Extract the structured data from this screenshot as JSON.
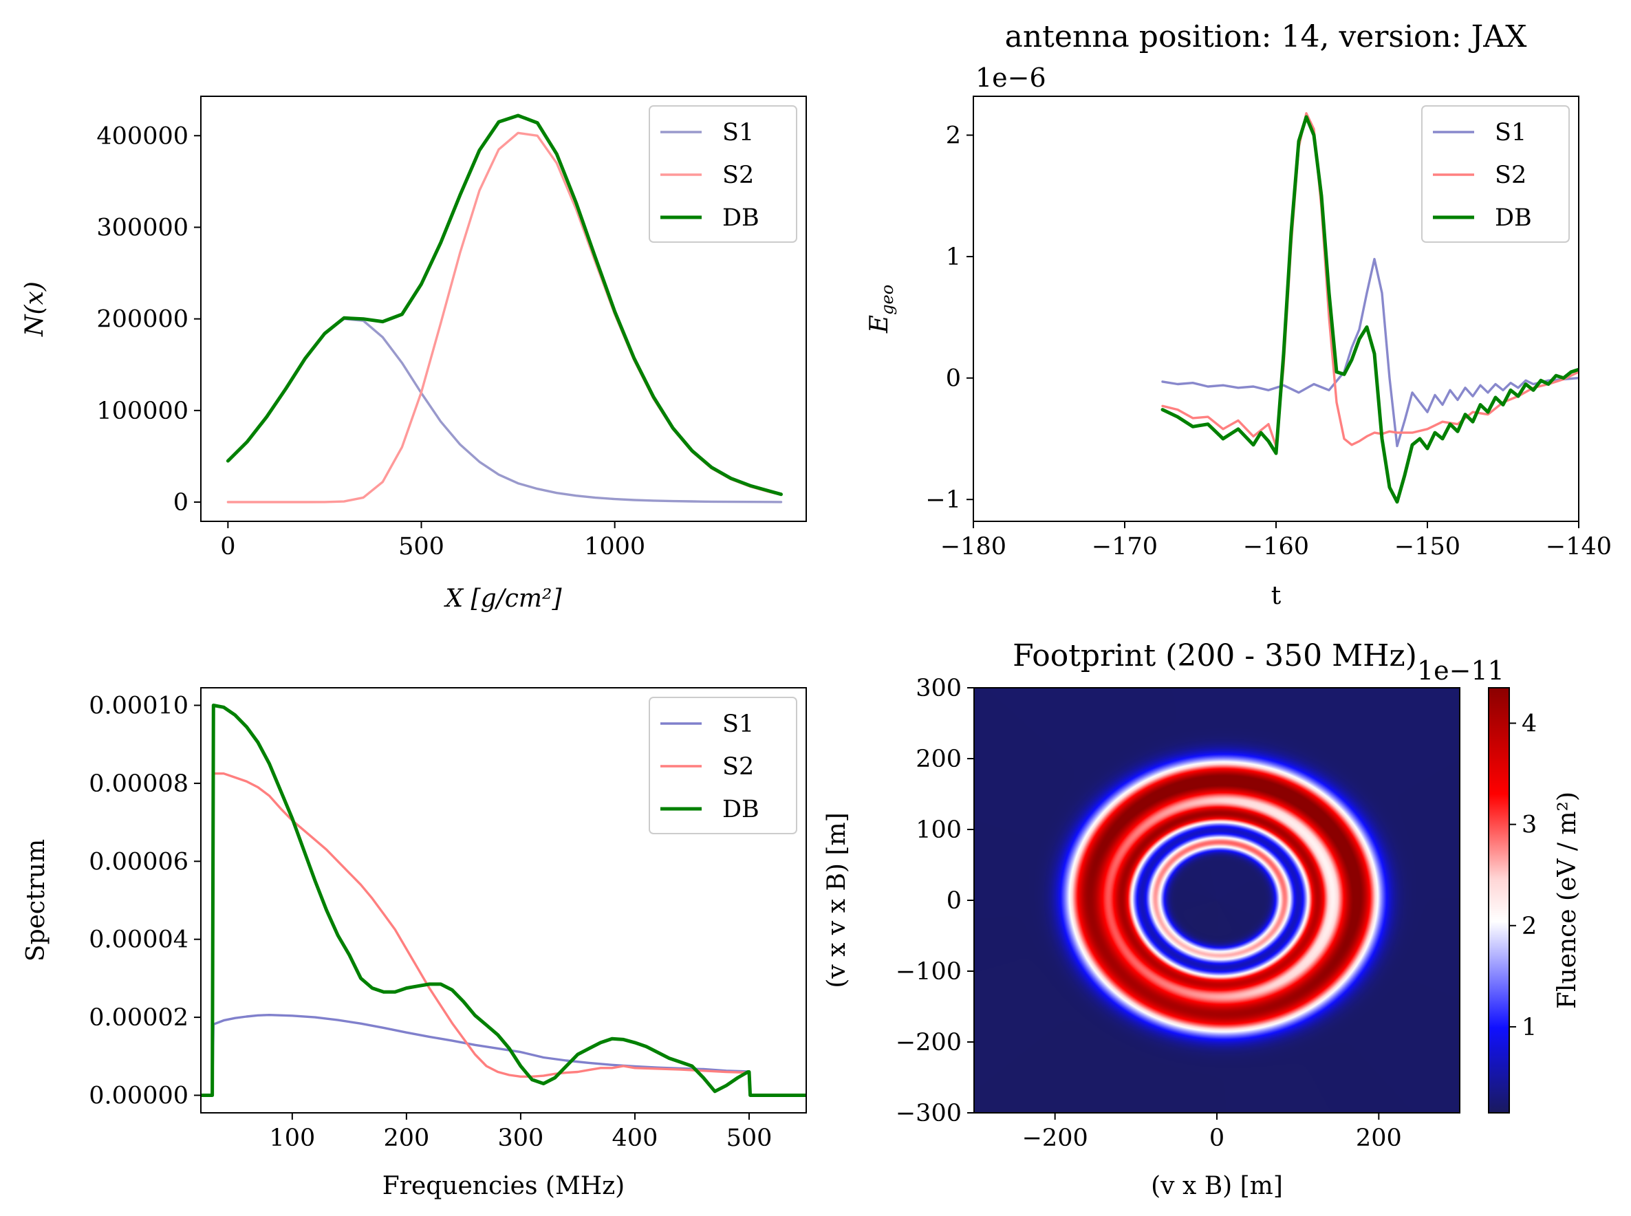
{
  "chart_data": [
    {
      "id": "shower-profile",
      "type": "line",
      "title": "",
      "xlabel": "X [g/cm²]",
      "ylabel": "N(x)",
      "xlim": [
        -70,
        1495
      ],
      "ylim": [
        -21000,
        443000
      ],
      "xticks": [
        0,
        500,
        1000
      ],
      "yticks": [
        0,
        100000,
        200000,
        300000,
        400000
      ],
      "grid": false,
      "legend_position": "top-right",
      "series": [
        {
          "name": "S1",
          "color": "#9999cc",
          "width": 3.4,
          "x": [
            0,
            50,
            100,
            150,
            200,
            250,
            300,
            350,
            400,
            450,
            500,
            550,
            600,
            650,
            700,
            750,
            800,
            850,
            900,
            950,
            1000,
            1050,
            1100,
            1150,
            1200,
            1250,
            1300,
            1350,
            1400,
            1430
          ],
          "y": [
            45000,
            66000,
            93000,
            124000,
            157000,
            184000,
            200000,
            198000,
            180000,
            152000,
            119000,
            88000,
            63000,
            44000,
            30000,
            20500,
            14500,
            10000,
            7000,
            4800,
            3300,
            2300,
            1600,
            1100,
            750,
            500,
            350,
            240,
            160,
            120
          ]
        },
        {
          "name": "S2",
          "color": "#ff9999",
          "width": 3.4,
          "x": [
            0,
            50,
            100,
            150,
            200,
            250,
            300,
            350,
            400,
            450,
            500,
            550,
            600,
            650,
            700,
            750,
            800,
            850,
            900,
            950,
            1000,
            1050,
            1100,
            1150,
            1200,
            1250,
            1300,
            1350,
            1400,
            1430
          ],
          "y": [
            0,
            0,
            0,
            0,
            0,
            100,
            700,
            5000,
            22000,
            60000,
            120000,
            195000,
            272000,
            340000,
            385000,
            403000,
            400000,
            370000,
            320000,
            262000,
            205000,
            155000,
            113000,
            80000,
            55000,
            37000,
            25000,
            17000,
            11000,
            8000
          ]
        },
        {
          "name": "DB",
          "color": "#008000",
          "width": 5,
          "x": [
            0,
            50,
            100,
            150,
            200,
            250,
            300,
            350,
            400,
            450,
            500,
            550,
            600,
            650,
            700,
            750,
            800,
            850,
            900,
            950,
            1000,
            1050,
            1100,
            1150,
            1200,
            1250,
            1300,
            1350,
            1400,
            1430
          ],
          "y": [
            45000,
            66000,
            93000,
            124000,
            157000,
            184000,
            201000,
            200000,
            197000,
            205000,
            238000,
            283000,
            335000,
            384000,
            415000,
            422000,
            414000,
            380000,
            327000,
            267000,
            208000,
            157000,
            115000,
            81000,
            56000,
            38000,
            26000,
            18000,
            12000,
            8500
          ]
        }
      ]
    },
    {
      "id": "electric-field-trace",
      "type": "line",
      "title": "antenna position: 14, version: JAX",
      "offset_label": "1e−6",
      "xlabel": "t",
      "ylabel": "E_geo",
      "xlim": [
        -180,
        -140
      ],
      "ylim": [
        -1.18,
        2.32
      ],
      "xticks": [
        -180,
        -170,
        -160,
        -150,
        -140
      ],
      "yticks": [
        -1,
        0,
        1,
        2
      ],
      "grid": false,
      "legend_position": "top-right",
      "series": [
        {
          "name": "S1",
          "color": "#8888cc",
          "width": 3.4,
          "x": [
            -167.5,
            -166.5,
            -165.5,
            -164.5,
            -163.5,
            -162.5,
            -161.5,
            -160.5,
            -159.5,
            -158.5,
            -157.5,
            -156.5,
            -155.5,
            -155,
            -154.5,
            -154,
            -153.5,
            -153,
            -152.5,
            -152,
            -151.5,
            -151,
            -150.5,
            -150,
            -149.5,
            -149,
            -148.5,
            -148,
            -147.5,
            -147,
            -146.5,
            -146,
            -145.5,
            -145,
            -144.5,
            -144,
            -143.5,
            -143,
            -142,
            -141,
            -140
          ],
          "y": [
            -0.03,
            -0.05,
            -0.04,
            -0.07,
            -0.06,
            -0.08,
            -0.07,
            -0.1,
            -0.06,
            -0.12,
            -0.05,
            -0.1,
            0.05,
            0.25,
            0.4,
            0.7,
            0.98,
            0.7,
            0.0,
            -0.56,
            -0.35,
            -0.12,
            -0.2,
            -0.28,
            -0.14,
            -0.22,
            -0.1,
            -0.18,
            -0.08,
            -0.15,
            -0.06,
            -0.12,
            -0.05,
            -0.1,
            -0.04,
            -0.08,
            -0.02,
            -0.05,
            -0.02,
            -0.01,
            0.0
          ]
        },
        {
          "name": "S2",
          "color": "#ff8080",
          "width": 3.4,
          "x": [
            -167.5,
            -166.5,
            -165.5,
            -164.5,
            -163.5,
            -162.5,
            -161.5,
            -160.5,
            -160,
            -159.5,
            -159,
            -158.5,
            -158,
            -157.5,
            -157,
            -156.5,
            -156,
            -155.5,
            -155,
            -154.5,
            -154,
            -153.5,
            -153,
            -152.5,
            -152,
            -151,
            -150,
            -149,
            -148,
            -147,
            -146,
            -145,
            -144,
            -143,
            -142,
            -141,
            -140
          ],
          "y": [
            -0.23,
            -0.26,
            -0.33,
            -0.32,
            -0.42,
            -0.35,
            -0.48,
            -0.38,
            -0.56,
            0.1,
            1.1,
            1.9,
            2.18,
            2.05,
            1.4,
            0.5,
            -0.2,
            -0.5,
            -0.55,
            -0.52,
            -0.48,
            -0.45,
            -0.46,
            -0.44,
            -0.45,
            -0.45,
            -0.42,
            -0.36,
            -0.38,
            -0.28,
            -0.3,
            -0.2,
            -0.15,
            -0.08,
            -0.05,
            -0.01,
            0.05
          ]
        },
        {
          "name": "DB",
          "color": "#008000",
          "width": 5,
          "x": [
            -167.5,
            -166.5,
            -165.5,
            -164.5,
            -163.5,
            -162.5,
            -161.5,
            -161,
            -160.5,
            -160,
            -159.5,
            -159,
            -158.5,
            -158,
            -157.5,
            -157,
            -156.5,
            -156,
            -155.5,
            -155,
            -154.5,
            -154,
            -153.5,
            -153,
            -152.5,
            -152,
            -151.5,
            -151,
            -150.5,
            -150,
            -149.5,
            -149,
            -148.5,
            -148,
            -147.5,
            -147,
            -146.5,
            -146,
            -145.5,
            -145,
            -144.5,
            -144,
            -143.5,
            -143,
            -142.5,
            -142,
            -141.5,
            -141,
            -140.5,
            -140
          ],
          "y": [
            -0.26,
            -0.32,
            -0.4,
            -0.38,
            -0.5,
            -0.42,
            -0.55,
            -0.45,
            -0.52,
            -0.62,
            0.2,
            1.2,
            1.95,
            2.15,
            2.0,
            1.5,
            0.7,
            0.05,
            0.03,
            0.15,
            0.32,
            0.42,
            0.2,
            -0.5,
            -0.9,
            -1.02,
            -0.8,
            -0.55,
            -0.5,
            -0.58,
            -0.45,
            -0.5,
            -0.38,
            -0.44,
            -0.3,
            -0.36,
            -0.22,
            -0.28,
            -0.16,
            -0.22,
            -0.1,
            -0.15,
            -0.05,
            -0.1,
            -0.02,
            -0.05,
            0.02,
            0.0,
            0.05,
            0.07
          ]
        }
      ]
    },
    {
      "id": "frequency-spectrum",
      "type": "line",
      "title": "",
      "xlabel": "Frequencies (MHz)",
      "ylabel": "Spectrum",
      "xlim": [
        20,
        550
      ],
      "ylim": [
        -4.5e-06,
        0.0001045
      ],
      "xticks": [
        100,
        200,
        300,
        400,
        500
      ],
      "yticks": [
        0.0,
        2e-05,
        4e-05,
        6e-05,
        8e-05,
        0.0001
      ],
      "ytick_labels": [
        "0.00000",
        "0.00002",
        "0.00004",
        "0.00006",
        "0.00008",
        "0.00010"
      ],
      "grid": false,
      "legend_position": "top-right",
      "series": [
        {
          "name": "S1",
          "color": "#8080cc",
          "width": 3.4,
          "x": [
            20,
            30,
            31,
            40,
            50,
            60,
            70,
            80,
            100,
            120,
            140,
            160,
            180,
            200,
            220,
            240,
            260,
            280,
            300,
            320,
            340,
            360,
            380,
            400,
            420,
            440,
            460,
            480,
            500
          ],
          "y": [
            0,
            0,
            1.82e-05,
            1.92e-05,
            1.98e-05,
            2.02e-05,
            2.05e-05,
            2.06e-05,
            2.04e-05,
            2e-05,
            1.93e-05,
            1.84e-05,
            1.73e-05,
            1.61e-05,
            1.5e-05,
            1.4e-05,
            1.29e-05,
            1.2e-05,
            1.11e-05,
            9.7e-06,
            8.9e-06,
            8.3e-06,
            7.8e-06,
            7.4e-06,
            7.1e-06,
            6.9e-06,
            6.7e-06,
            6.3e-06,
            6.1e-06
          ]
        },
        {
          "name": "S2",
          "color": "#ff7f7f",
          "width": 3.4,
          "x": [
            20,
            30,
            31,
            40,
            50,
            60,
            70,
            80,
            90,
            100,
            110,
            120,
            130,
            140,
            150,
            160,
            170,
            180,
            190,
            200,
            210,
            220,
            230,
            240,
            250,
            260,
            270,
            280,
            290,
            300,
            310,
            320,
            330,
            340,
            350,
            360,
            370,
            380,
            390,
            400,
            420,
            440,
            460,
            480,
            500
          ],
          "y": [
            0,
            0,
            8.25e-05,
            8.25e-05,
            8.15e-05,
            8.05e-05,
            7.9e-05,
            7.68e-05,
            7.35e-05,
            7.05e-05,
            6.8e-05,
            6.55e-05,
            6.3e-05,
            6e-05,
            5.7e-05,
            5.4e-05,
            5.05e-05,
            4.65e-05,
            4.25e-05,
            3.75e-05,
            3.25e-05,
            2.75e-05,
            2.3e-05,
            1.85e-05,
            1.45e-05,
            1.05e-05,
            7.5e-06,
            6e-06,
            5.2e-06,
            4.8e-06,
            4.8e-06,
            5e-06,
            5.5e-06,
            5.8e-06,
            6e-06,
            6.5e-06,
            7e-06,
            7e-06,
            7.5e-06,
            7e-06,
            6.8e-06,
            6.6e-06,
            6.3e-06,
            6e-06,
            5.8e-06
          ]
        },
        {
          "name": "DB",
          "color": "#008000",
          "width": 5,
          "x": [
            20,
            30,
            31,
            40,
            50,
            60,
            70,
            80,
            90,
            100,
            110,
            120,
            130,
            140,
            150,
            160,
            170,
            180,
            190,
            200,
            210,
            220,
            230,
            240,
            250,
            260,
            270,
            280,
            290,
            300,
            310,
            320,
            330,
            340,
            350,
            360,
            370,
            380,
            390,
            400,
            410,
            420,
            430,
            440,
            450,
            460,
            470,
            480,
            490,
            499,
            500,
            501,
            510,
            520,
            550
          ],
          "y": [
            0,
            0,
            0.0001,
            9.95e-05,
            9.75e-05,
            9.45e-05,
            9.05e-05,
            8.5e-05,
            7.8e-05,
            7.1e-05,
            6.3e-05,
            5.5e-05,
            4.75e-05,
            4.1e-05,
            3.6e-05,
            3e-05,
            2.75e-05,
            2.65e-05,
            2.65e-05,
            2.75e-05,
            2.8e-05,
            2.85e-05,
            2.85e-05,
            2.7e-05,
            2.4e-05,
            2.05e-05,
            1.8e-05,
            1.55e-05,
            1.2e-05,
            7.5e-06,
            4e-06,
            3e-06,
            4.5e-06,
            7.5e-06,
            1.05e-05,
            1.2e-05,
            1.35e-05,
            1.45e-05,
            1.43e-05,
            1.35e-05,
            1.25e-05,
            1.1e-05,
            9.5e-06,
            8.5e-06,
            7.5e-06,
            4.5e-06,
            1e-06,
            2.5e-06,
            4.5e-06,
            6e-06,
            6e-06,
            0,
            0,
            0,
            0
          ]
        }
      ]
    },
    {
      "id": "footprint-map",
      "type": "heatmap",
      "title": "Footprint (200 - 350 MHz)",
      "xlabel": "(v x B) [m]",
      "ylabel": "(v x v x B) [m]",
      "xlim": [
        -300,
        300
      ],
      "ylim": [
        -300,
        300
      ],
      "xticks": [
        -200,
        0,
        200
      ],
      "yticks": [
        -300,
        -200,
        -100,
        0,
        100,
        200,
        300
      ],
      "colormap": "seismic",
      "colorbar": {
        "label": "Fluence (eV / m²)",
        "offset_label": "1e−11",
        "range": [
          0.15,
          4.35
        ],
        "ticks": [
          1,
          2,
          3,
          4
        ]
      },
      "rings": [
        {
          "radius_m": 165,
          "width_m": 40,
          "peak": 4.3
        },
        {
          "radius_m": 120,
          "width_m": 20,
          "peak": 3.6
        },
        {
          "radius_m": 80,
          "width_m": 15,
          "peak": 2.7
        }
      ],
      "ring_center_shift_m": [
        8,
        4
      ]
    }
  ]
}
